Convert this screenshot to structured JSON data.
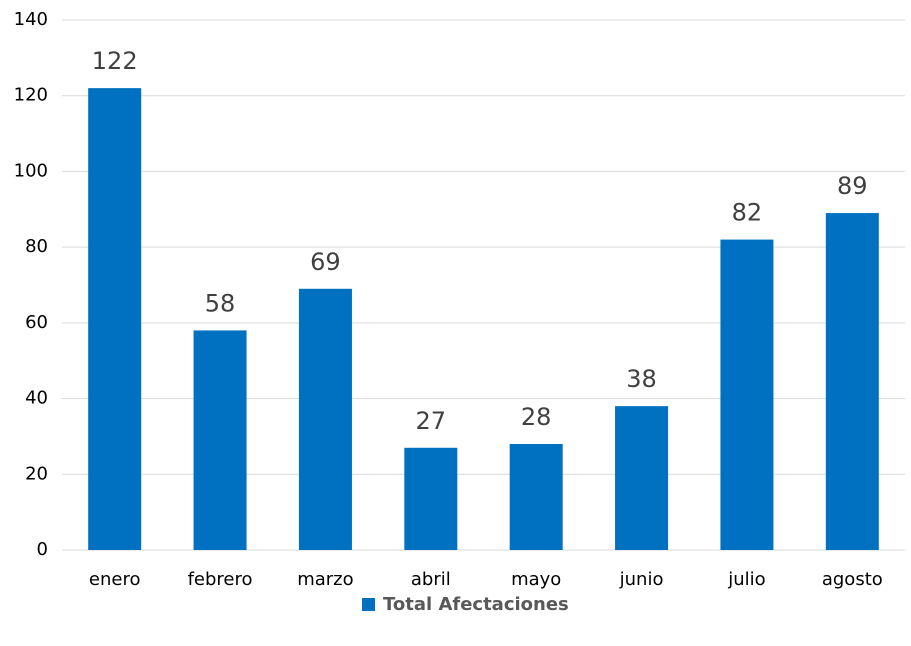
{
  "chart_data": {
    "type": "bar",
    "categories": [
      "enero",
      "febrero",
      "marzo",
      "abril",
      "mayo",
      "junio",
      "julio",
      "agosto"
    ],
    "series": [
      {
        "name": "Total Afectaciones",
        "color": "#0070c0",
        "values": [
          122,
          58,
          69,
          27,
          28,
          38,
          82,
          89
        ]
      }
    ],
    "ylim": [
      0,
      140
    ],
    "yticks": [
      0,
      20,
      40,
      60,
      80,
      100,
      120,
      140
    ],
    "grid": true,
    "legend": "bottom"
  }
}
